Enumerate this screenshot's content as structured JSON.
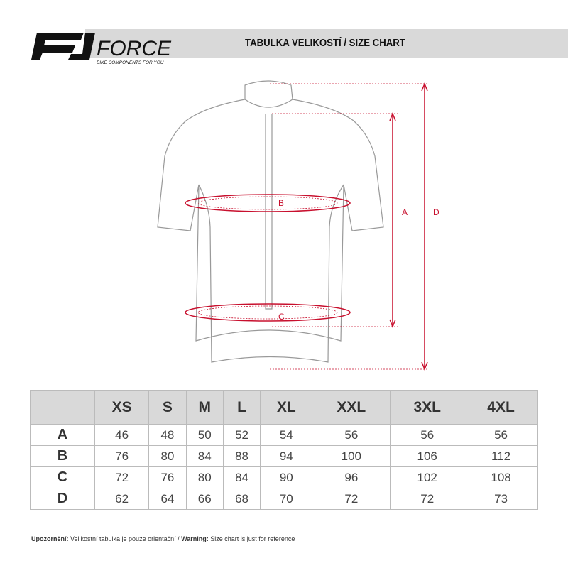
{
  "header": {
    "brand": "FORCE",
    "tagline": "BIKE COMPONENTS FOR YOU",
    "title": "TABULKA VELIKOSTÍ / SIZE CHART"
  },
  "diagram": {
    "labels": {
      "a": "A",
      "b": "B",
      "c": "C",
      "d": "D"
    },
    "accent": "#c8102e"
  },
  "table": {
    "sizes": [
      "XS",
      "S",
      "M",
      "L",
      "XL",
      "XXL",
      "3XL",
      "4XL"
    ],
    "rows": [
      {
        "label": "A",
        "values": [
          "46",
          "48",
          "50",
          "52",
          "54",
          "56",
          "56",
          "56"
        ]
      },
      {
        "label": "B",
        "values": [
          "76",
          "80",
          "84",
          "88",
          "94",
          "100",
          "106",
          "112"
        ]
      },
      {
        "label": "C",
        "values": [
          "72",
          "76",
          "80",
          "84",
          "90",
          "96",
          "102",
          "108"
        ]
      },
      {
        "label": "D",
        "values": [
          "62",
          "64",
          "66",
          "68",
          "70",
          "72",
          "72",
          "73"
        ]
      }
    ]
  },
  "footer": {
    "warn_cz_label": "Upozornění:",
    "warn_cz": " Velikostní tabulka je pouze orientační / ",
    "warn_en_label": "Warning:",
    "warn_en": " Size chart is just for reference"
  }
}
